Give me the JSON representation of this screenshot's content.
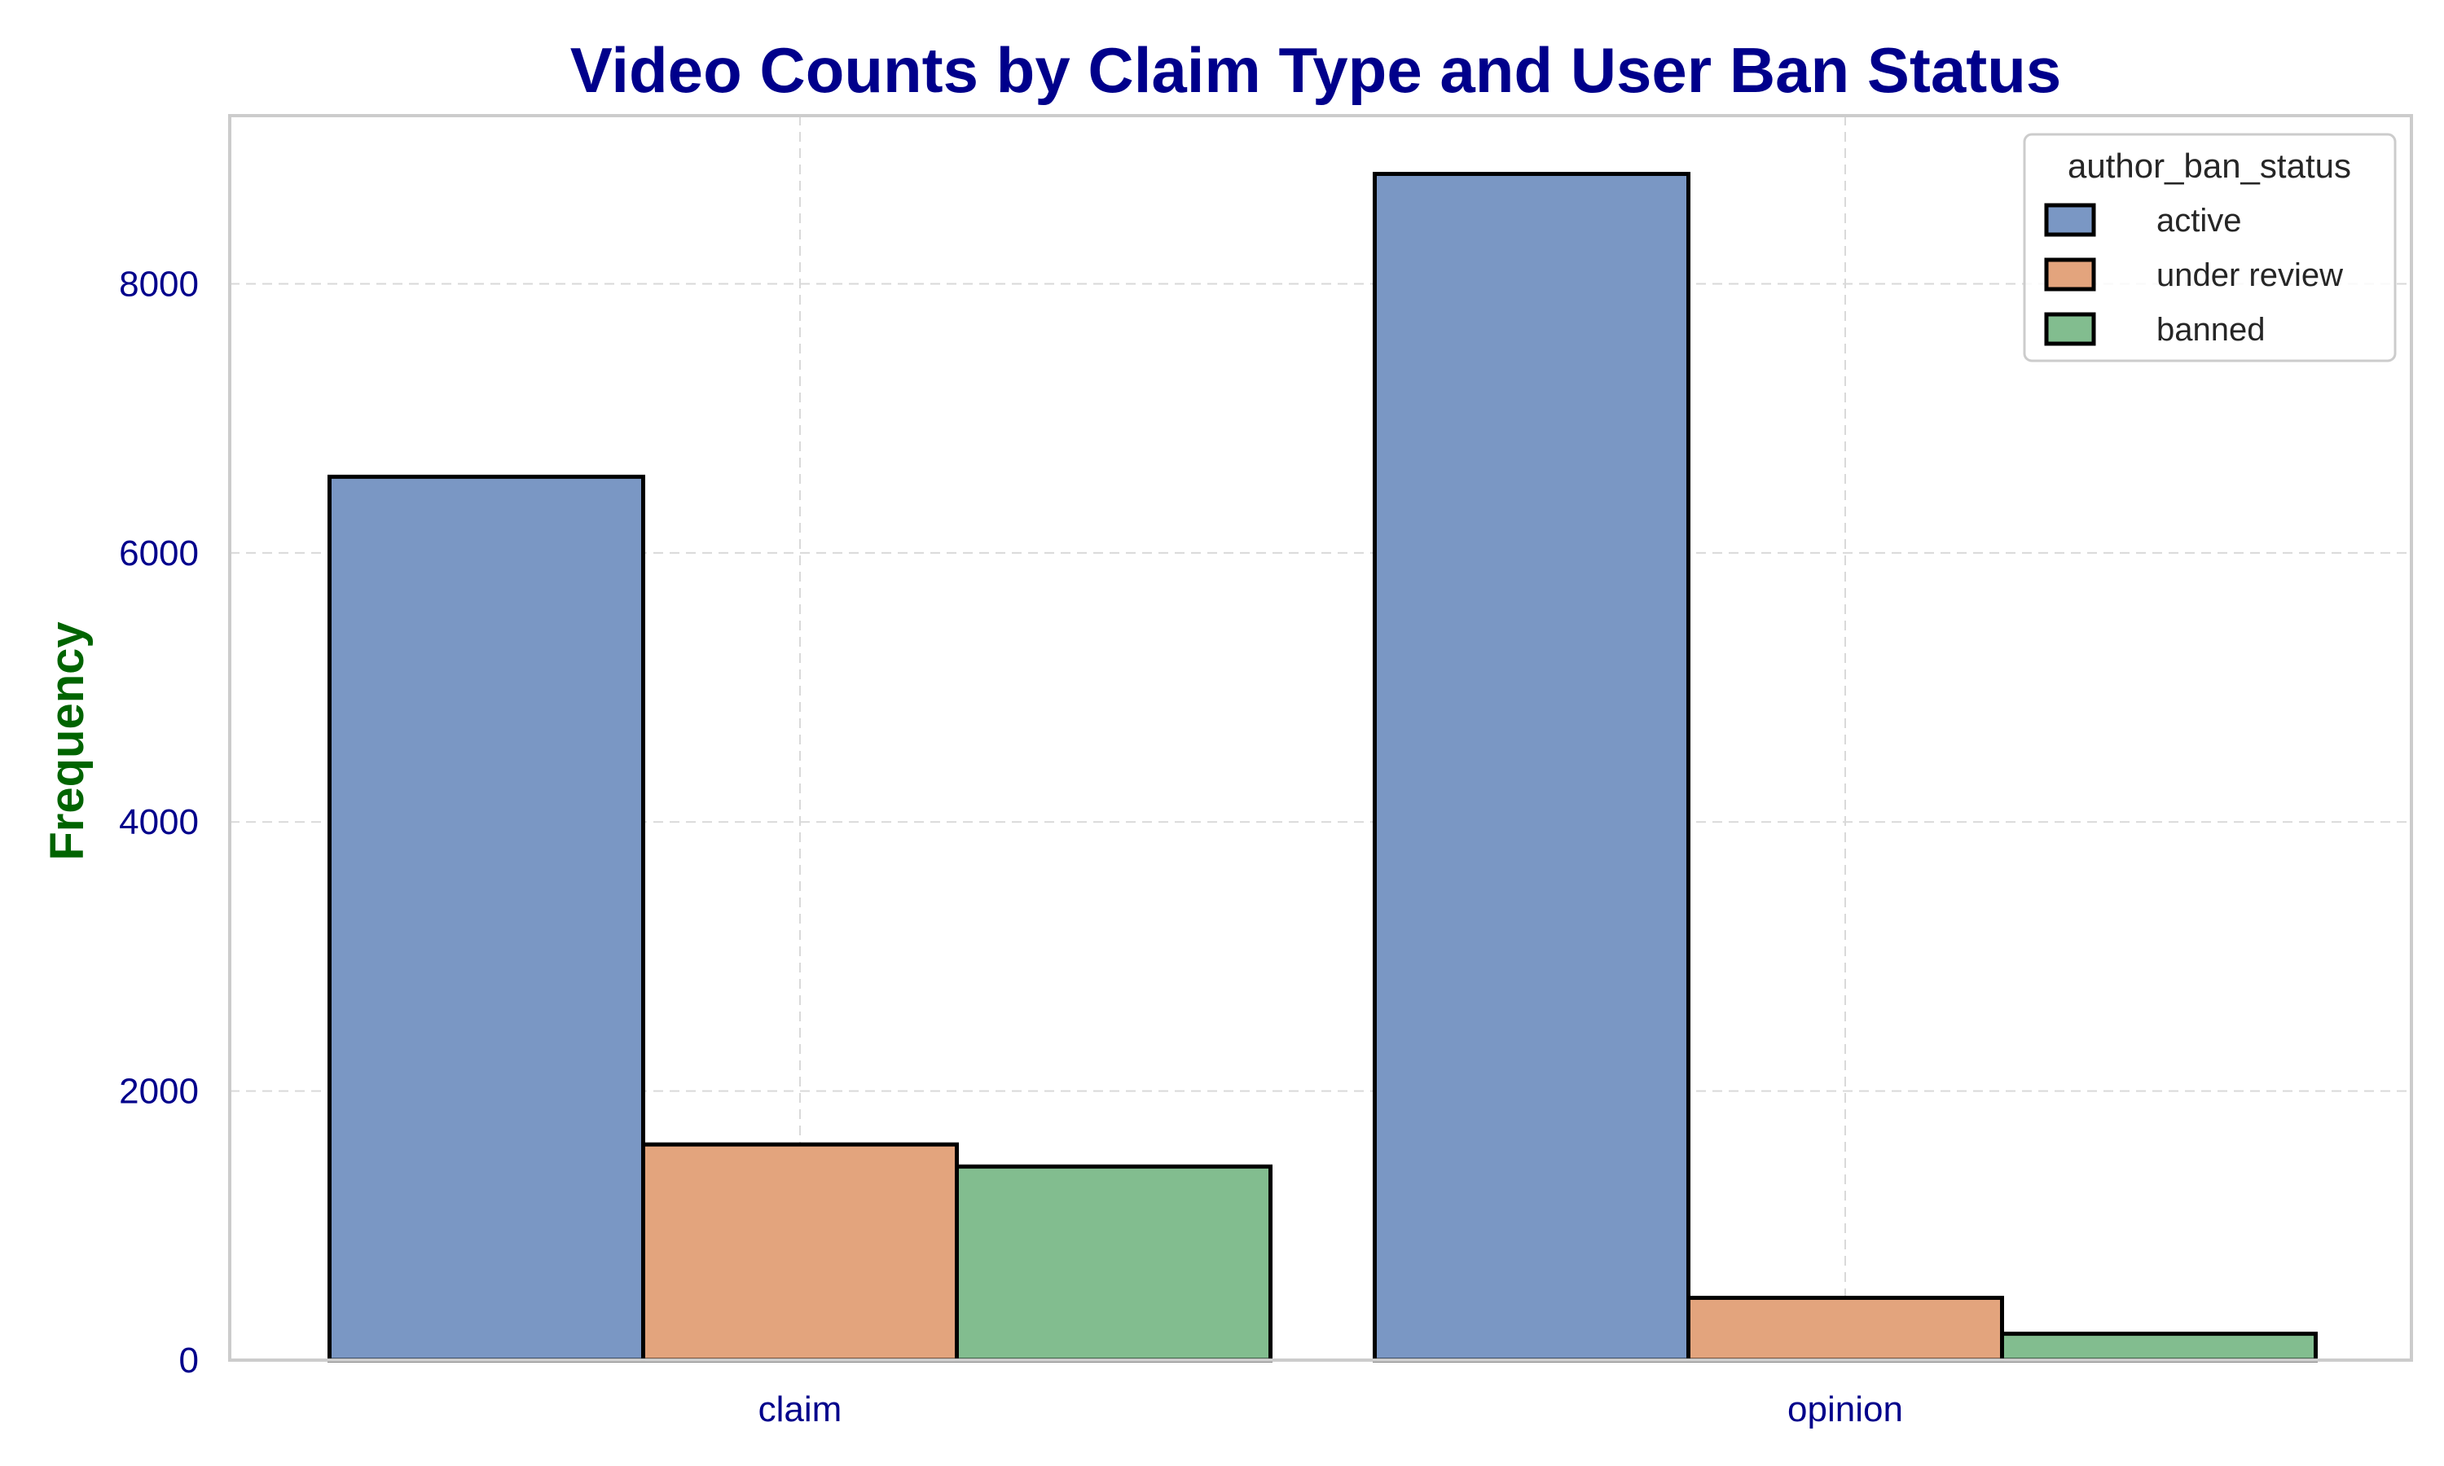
{
  "chart_data": {
    "type": "bar",
    "title": "Video Counts by Claim Type and User Ban Status",
    "xlabel": "",
    "ylabel": "Frequency",
    "categories": [
      "claim",
      "opinion"
    ],
    "series": [
      {
        "name": "active",
        "values": [
          6566,
          8817
        ],
        "color": "#7a97c4"
      },
      {
        "name": "under review",
        "values": [
          1603,
          463
        ],
        "color": "#e3a47d"
      },
      {
        "name": "banned",
        "values": [
          1439,
          196
        ],
        "color": "#82bd8f"
      }
    ],
    "ylim": [
      0,
      9250
    ],
    "yticks": [
      0,
      2000,
      4000,
      6000,
      8000
    ],
    "grid": true,
    "legend": {
      "title": "author_ban_status",
      "position": "top-right"
    },
    "colors": {
      "title": "#00008b",
      "ylabel": "#006400",
      "ticks": "#00008b",
      "bar_edge": "#000000",
      "grid": "#d9d9d9",
      "frame": "#cccccc"
    }
  }
}
